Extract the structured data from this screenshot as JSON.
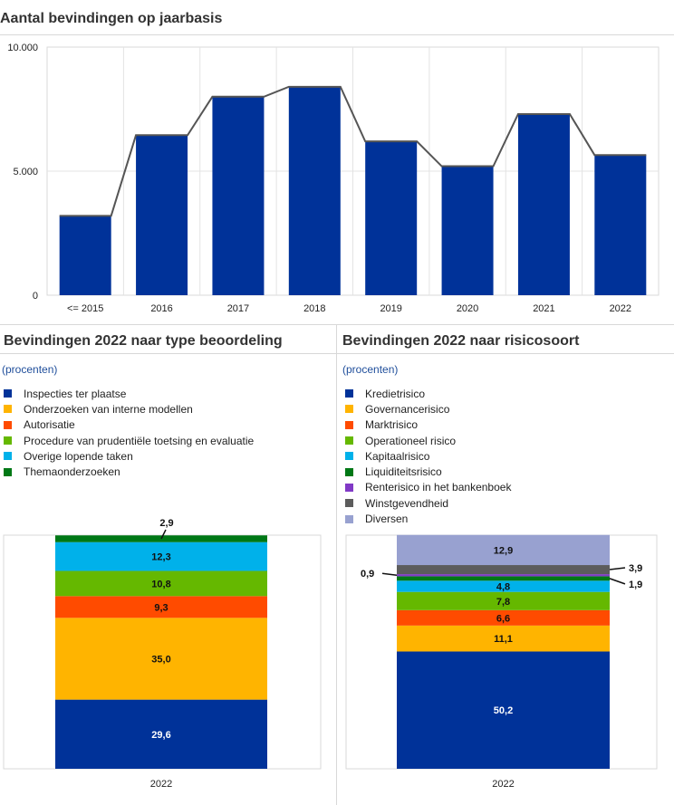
{
  "top": {
    "title": "Aantal bevindingen op jaarbasis"
  },
  "left": {
    "title": "Bevindingen 2022 naar type beoordeling",
    "unit": "(procenten)"
  },
  "right": {
    "title": "Bevindingen 2022 naar risicosoort",
    "unit": "(procenten)"
  },
  "chart_data": [
    {
      "type": "bar",
      "title": "Aantal bevindingen op jaarbasis",
      "categories": [
        "<= 2015",
        "2016",
        "2017",
        "2018",
        "2019",
        "2020",
        "2021",
        "2022"
      ],
      "values": [
        3200,
        6450,
        8000,
        8400,
        6200,
        5200,
        7300,
        5650
      ],
      "overlay_line": true,
      "ylim": [
        0,
        10000
      ],
      "yticks": [
        0,
        5000,
        10000
      ],
      "ytick_labels": [
        "0",
        "5.000",
        "10.000"
      ],
      "grid": true,
      "color": "#003299",
      "line_color": "#555555"
    },
    {
      "type": "bar",
      "stacked": true,
      "title": "Bevindingen 2022 naar type beoordeling",
      "unit": "(procenten)",
      "categories": [
        "2022"
      ],
      "ylim": [
        0,
        100
      ],
      "legend_position": "top",
      "series": [
        {
          "name": "Inspecties ter plaatse",
          "values": [
            29.6
          ],
          "label": "29,6",
          "color": "#003299",
          "label_color": "#ffffff"
        },
        {
          "name": "Onderzoeken van interne modellen",
          "values": [
            35.0
          ],
          "label": "35,0",
          "color": "#ffb400",
          "label_color": "#111111"
        },
        {
          "name": "Autorisatie",
          "values": [
            9.3
          ],
          "label": "9,3",
          "color": "#ff4b00",
          "label_color": "#111111"
        },
        {
          "name": "Procedure van prudentiële toetsing en evaluatie",
          "values": [
            10.8
          ],
          "label": "10,8",
          "color": "#65b800",
          "label_color": "#111111"
        },
        {
          "name": "Overige lopende taken",
          "values": [
            12.3
          ],
          "label": "12,3",
          "color": "#00b1ea",
          "label_color": "#111111"
        },
        {
          "name": "Themaonderzoeken",
          "values": [
            2.9
          ],
          "label": "2,9",
          "color": "#007816",
          "label_color": "#111111"
        }
      ]
    },
    {
      "type": "bar",
      "stacked": true,
      "title": "Bevindingen 2022 naar risicosoort",
      "unit": "(procenten)",
      "categories": [
        "2022"
      ],
      "ylim": [
        0,
        100
      ],
      "legend_position": "top",
      "series": [
        {
          "name": "Kredietrisico",
          "values": [
            50.2
          ],
          "label": "50,2",
          "color": "#003299",
          "label_color": "#ffffff"
        },
        {
          "name": "Governancerisico",
          "values": [
            11.1
          ],
          "label": "11,1",
          "color": "#ffb400",
          "label_color": "#111111"
        },
        {
          "name": "Marktrisico",
          "values": [
            6.6
          ],
          "label": "6,6",
          "color": "#ff4b00",
          "label_color": "#111111"
        },
        {
          "name": "Operationeel risico",
          "values": [
            7.8
          ],
          "label": "7,8",
          "color": "#65b800",
          "label_color": "#111111"
        },
        {
          "name": "Kapitaalrisico",
          "values": [
            4.8
          ],
          "label": "4,8",
          "color": "#00b1ea",
          "label_color": "#111111"
        },
        {
          "name": "Liquiditeitsrisico",
          "values": [
            1.9
          ],
          "label": "1,9",
          "color": "#007816",
          "label_color": "#111111"
        },
        {
          "name": "Renterisico in het bankenboek",
          "values": [
            0.9
          ],
          "label": "0,9",
          "color": "#8139c6",
          "label_color": "#111111"
        },
        {
          "name": "Winstgevendheid",
          "values": [
            3.9
          ],
          "label": "3,9",
          "color": "#5c5c5c",
          "label_color": "#111111"
        },
        {
          "name": "Diversen",
          "values": [
            12.9
          ],
          "label": "12,9",
          "color": "#98a1d0",
          "label_color": "#111111"
        }
      ]
    }
  ]
}
